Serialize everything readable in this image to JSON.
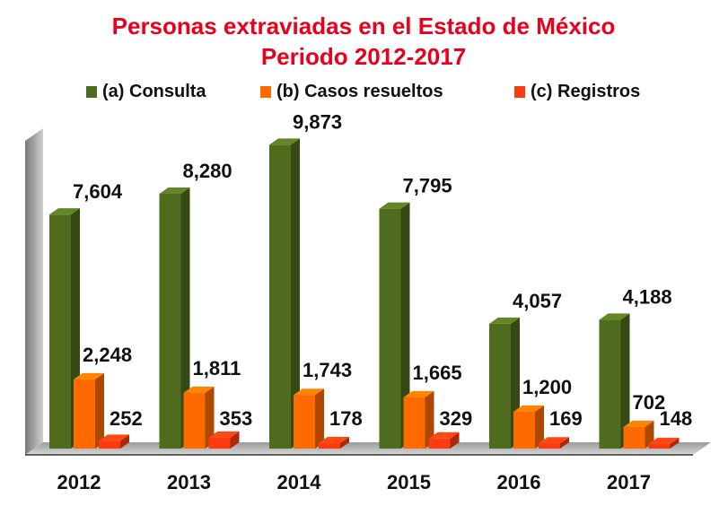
{
  "chart_data": {
    "type": "bar",
    "title": "Personas extraviadas en el Estado de México",
    "subtitle": "Periodo 2012-2017",
    "categories": [
      "2012",
      "2013",
      "2014",
      "2015",
      "2016",
      "2017"
    ],
    "series": [
      {
        "name": "(a) Consulta",
        "values": [
          7604,
          8280,
          9873,
          7795,
          4057,
          4188
        ],
        "labels": [
          "7,604",
          "8,280",
          "9,873",
          "7,795",
          "4,057",
          "4,188"
        ],
        "color": "#4f6b1e"
      },
      {
        "name": "(b) Casos resueltos",
        "values": [
          2248,
          1811,
          1743,
          1665,
          1200,
          702
        ],
        "labels": [
          "2,248",
          "1,811",
          "1,743",
          "1,665",
          "1,200",
          "702"
        ],
        "color": "#ff6a00"
      },
      {
        "name": "(c) Registros",
        "values": [
          252,
          353,
          178,
          329,
          169,
          148
        ],
        "labels": [
          "252",
          "353",
          "178",
          "329",
          "169",
          "148"
        ],
        "color": "#ff3a10"
      }
    ],
    "ylim": [
      0,
      10000
    ],
    "grid": false,
    "legend_position": "top"
  }
}
